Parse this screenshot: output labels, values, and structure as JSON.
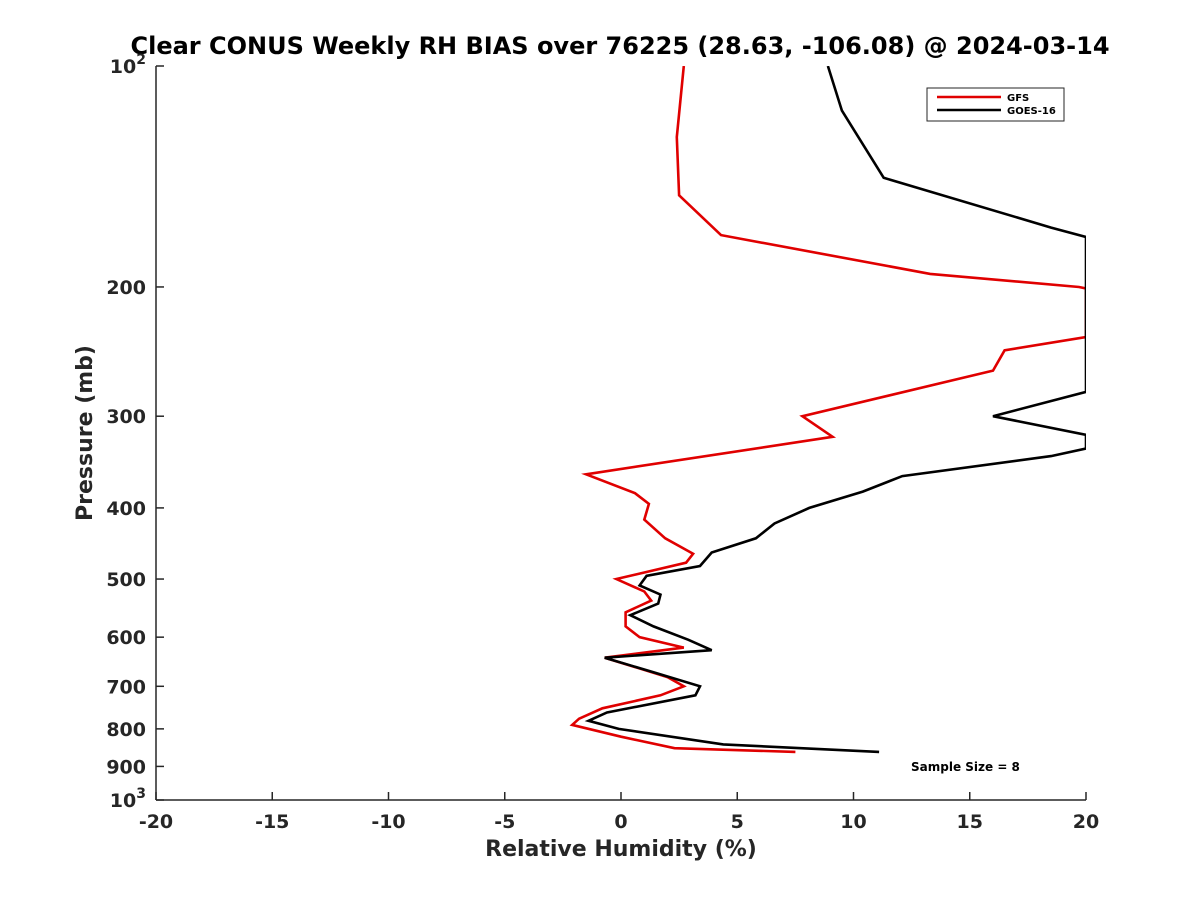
{
  "chart_data": {
    "type": "line",
    "title": "Clear CONUS Weekly RH BIAS over 76225 (28.63, -106.08) @ 2024-03-14",
    "xlabel": "Relative Humidity (%)",
    "ylabel": "Pressure (mb)",
    "xlim": [
      -20,
      20
    ],
    "ylim": [
      100,
      1000
    ],
    "y_scale": "log",
    "y_reversed": true,
    "grid": false,
    "legend_position": "top-right",
    "x_ticks": [
      -20,
      -15,
      -10,
      -5,
      0,
      5,
      10,
      15,
      20
    ],
    "x_tick_labels": [
      "-20",
      "-15",
      "-10",
      "-5",
      "0",
      "5",
      "10",
      "15",
      "20"
    ],
    "y_ticks": [
      {
        "value": 100,
        "base": "10",
        "exp": "2"
      },
      {
        "value": 200,
        "label": "200"
      },
      {
        "value": 300,
        "label": "300"
      },
      {
        "value": 400,
        "label": "400"
      },
      {
        "value": 500,
        "label": "500"
      },
      {
        "value": 600,
        "label": "600"
      },
      {
        "value": 700,
        "label": "700"
      },
      {
        "value": 800,
        "label": "800"
      },
      {
        "value": 900,
        "label": "900"
      },
      {
        "value": 1000,
        "base": "10",
        "exp": "3"
      }
    ],
    "annotation": "Sample Size = 8",
    "series": [
      {
        "name": "GFS",
        "color": "#e00000",
        "points": [
          [
            2.7,
            100
          ],
          [
            2.4,
            125
          ],
          [
            2.5,
            150
          ],
          [
            4.3,
            170
          ],
          [
            13.3,
            192
          ],
          [
            19.7,
            200
          ],
          [
            20,
            201
          ],
          [
            20,
            234
          ],
          [
            16.5,
            244
          ],
          [
            16.0,
            260
          ],
          [
            7.8,
            300
          ],
          [
            9.1,
            320
          ],
          [
            -1.5,
            360
          ],
          [
            0.6,
            382
          ],
          [
            1.2,
            395
          ],
          [
            1.0,
            415
          ],
          [
            1.9,
            440
          ],
          [
            3.1,
            462
          ],
          [
            2.8,
            475
          ],
          [
            -0.2,
            500
          ],
          [
            1.0,
            520
          ],
          [
            1.3,
            535
          ],
          [
            0.2,
            555
          ],
          [
            0.2,
            580
          ],
          [
            0.8,
            600
          ],
          [
            2.7,
            620
          ],
          [
            -0.7,
            640
          ],
          [
            2.0,
            680
          ],
          [
            2.7,
            700
          ],
          [
            1.7,
            720
          ],
          [
            -0.8,
            750
          ],
          [
            -1.8,
            775
          ],
          [
            -2.1,
            790
          ],
          [
            0.0,
            820
          ],
          [
            2.3,
            850
          ],
          [
            7.5,
            860
          ]
        ]
      },
      {
        "name": "GOES-16",
        "color": "#000000",
        "points": [
          [
            8.9,
            100
          ],
          [
            9.5,
            115
          ],
          [
            11.3,
            142
          ],
          [
            18.5,
            166
          ],
          [
            20,
            171
          ],
          [
            20,
            278
          ],
          [
            16.0,
            300
          ],
          [
            20,
            318
          ],
          [
            20,
            332
          ],
          [
            18.5,
            340
          ],
          [
            12.1,
            362
          ],
          [
            10.4,
            380
          ],
          [
            8.1,
            400
          ],
          [
            6.6,
            420
          ],
          [
            5.8,
            440
          ],
          [
            3.9,
            460
          ],
          [
            3.4,
            480
          ],
          [
            1.1,
            495
          ],
          [
            0.8,
            510
          ],
          [
            1.7,
            525
          ],
          [
            1.6,
            540
          ],
          [
            0.4,
            560
          ],
          [
            1.4,
            580
          ],
          [
            2.9,
            605
          ],
          [
            3.9,
            625
          ],
          [
            -0.7,
            640
          ],
          [
            1.4,
            670
          ],
          [
            3.4,
            700
          ],
          [
            3.2,
            720
          ],
          [
            -0.6,
            760
          ],
          [
            -1.4,
            780
          ],
          [
            -0.1,
            800
          ],
          [
            4.4,
            840
          ],
          [
            11.1,
            860
          ]
        ]
      }
    ]
  }
}
